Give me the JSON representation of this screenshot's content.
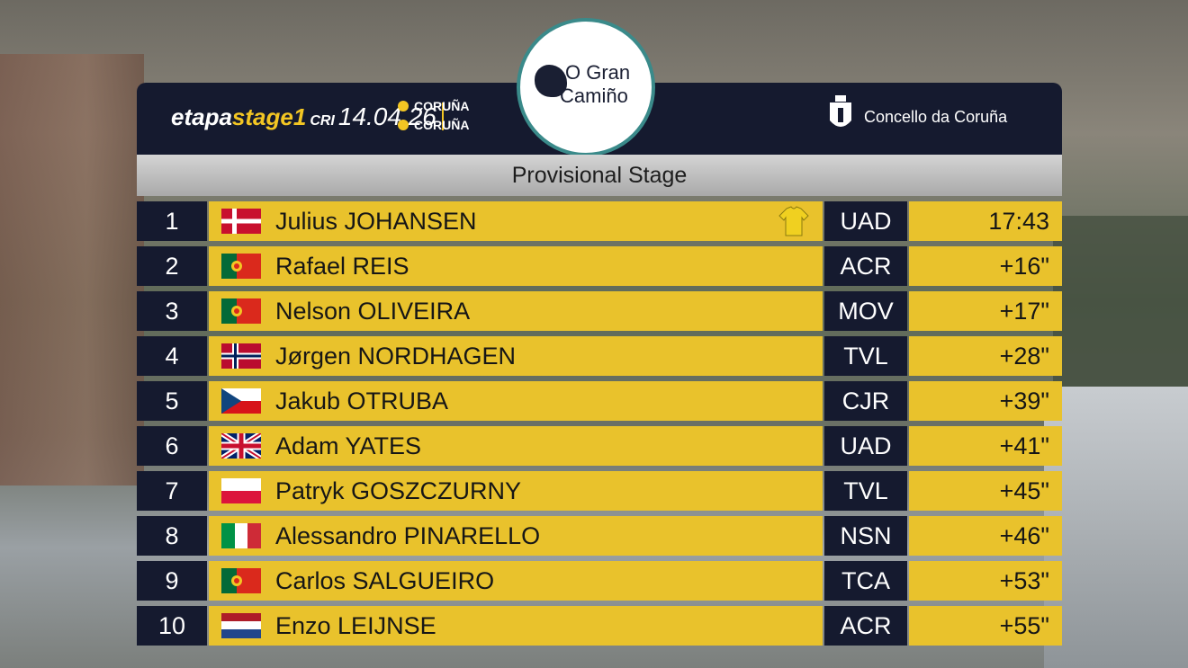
{
  "header": {
    "stage_prefix": "etapa",
    "stage": "stage1",
    "stage_type": "CRI",
    "date": "14.04.26",
    "start": "CORUÑA",
    "finish": "CORUÑA",
    "logo_line1": "O Gran",
    "logo_line2": "Camiño",
    "sponsor": "Concello da Coruña"
  },
  "subtitle": "Provisional Stage",
  "table": {
    "rows": [
      [
        1,
        "Julius JOHANSEN",
        "UAD",
        "17:43"
      ],
      [
        2,
        "Rafael REIS",
        "ACR",
        "+16\""
      ],
      [
        3,
        "Nelson OLIVEIRA",
        "MOV",
        "+17\""
      ],
      [
        4,
        "Jørgen NORDHAGEN",
        "TVL",
        "+28\""
      ],
      [
        5,
        "Jakub OTRUBA",
        "CJR",
        "+39\""
      ],
      [
        6,
        "Adam YATES",
        "UAD",
        "+41\""
      ],
      [
        7,
        "Patryk GOSZCZURNY",
        "TVL",
        "+45\""
      ],
      [
        8,
        "Alessandro PINARELLO",
        "NSN",
        "+46\""
      ],
      [
        9,
        "Carlos SALGUEIRO",
        "TCA",
        "+53\""
      ],
      [
        10,
        "Enzo LEIJNSE",
        "ACR",
        "+55\""
      ]
    ]
  }
}
